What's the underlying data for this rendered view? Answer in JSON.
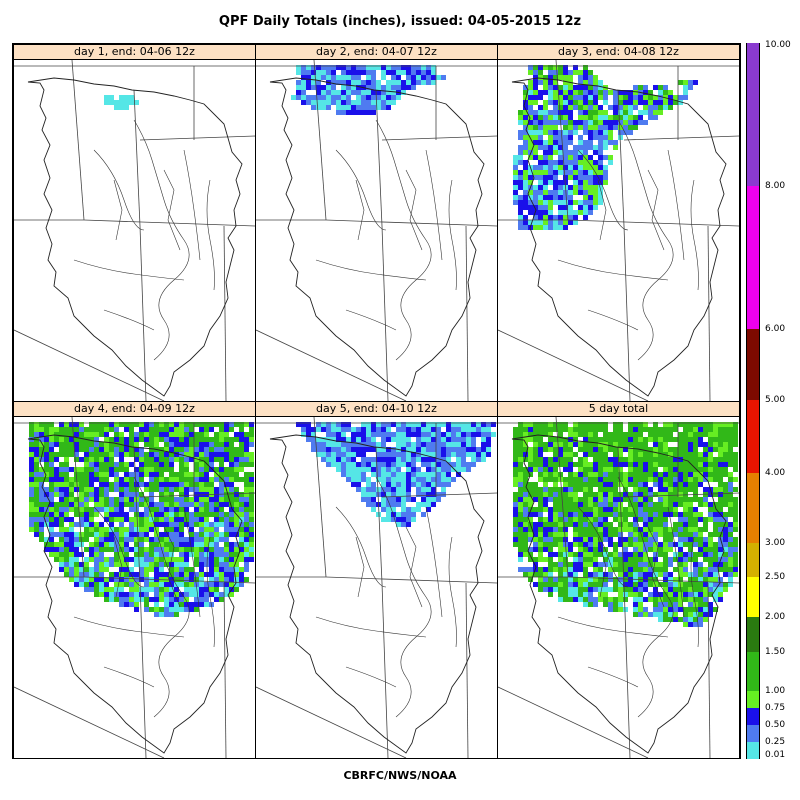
{
  "title": "QPF Daily Totals (inches),  issued: 04-05-2015 12z",
  "footer": "CBRFC/NWS/NOAA",
  "panels": [
    {
      "label": "day 1, end: 04-06 12z",
      "coverage": "minimal",
      "intensity": 0
    },
    {
      "label": "day 2, end: 04-07 12z",
      "coverage": "north",
      "intensity": 1
    },
    {
      "label": "day 3, end: 04-08 12z",
      "coverage": "northwest",
      "intensity": 2
    },
    {
      "label": "day 4, end: 04-09 12z",
      "coverage": "north-broad",
      "intensity": 3
    },
    {
      "label": "day 5, end: 04-10 12z",
      "coverage": "north-central",
      "intensity": 1
    },
    {
      "label": "5 day total",
      "coverage": "total",
      "intensity": 4
    }
  ],
  "legend": {
    "bins": [
      {
        "from": "0.01",
        "to": "0.25",
        "color": "#55e6e6"
      },
      {
        "from": "0.25",
        "to": "0.50",
        "color": "#4f7bf0"
      },
      {
        "from": "0.50",
        "to": "0.75",
        "color": "#1a10ea"
      },
      {
        "from": "0.75",
        "to": "1.00",
        "color": "#66ee22"
      },
      {
        "from": "1.00",
        "to": "1.50",
        "color": "#31b818"
      },
      {
        "from": "1.50",
        "to": "2.00",
        "color": "#2a7a10"
      },
      {
        "from": "2.00",
        "to": "2.50",
        "color": "#ffff00"
      },
      {
        "from": "2.50",
        "to": "3.00",
        "color": "#d4b000"
      },
      {
        "from": "3.00",
        "to": "4.00",
        "color": "#e68000"
      },
      {
        "from": "4.00",
        "to": "5.00",
        "color": "#e81400"
      },
      {
        "from": "5.00",
        "to": "6.00",
        "color": "#b50e00"
      },
      {
        "from": "6.00",
        "to": "8.00",
        "color": "#7d0a00"
      },
      {
        "from": "8.00",
        "to": "10.00",
        "color": "#ee00ee"
      },
      {
        "from": "10.00",
        "to": "10.00",
        "color": "#8a3ad0"
      }
    ],
    "labels": [
      "0.01",
      "0.25",
      "0.50",
      "0.75",
      "1.00",
      "1.50",
      "2.00",
      "2.50",
      "3.00",
      "4.00",
      "5.00",
      "6.00",
      "8.00",
      "10.00"
    ]
  }
}
